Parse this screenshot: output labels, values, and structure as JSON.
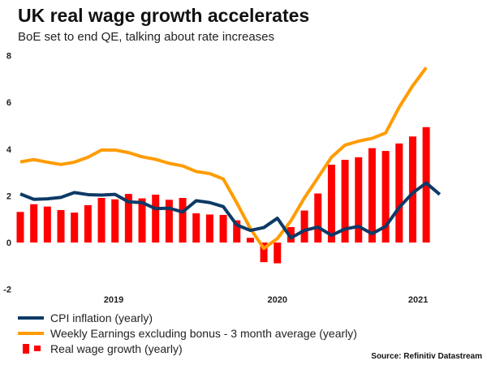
{
  "title": "UK real wage growth accelerates",
  "subtitle": "BoE set to end QE, talking about rate increases",
  "source": "Source: Refinitiv Datastream",
  "colors": {
    "cpi": "#0d3a66",
    "earnings": "#ff9c00",
    "real_wage": "#ff0000"
  },
  "chart_data": {
    "type": "bar+line",
    "ylim": [
      -2,
      8
    ],
    "yticks": [
      -2,
      0,
      2,
      4,
      6,
      8
    ],
    "xticks": [
      {
        "label": "2019",
        "pos": 6.9
      },
      {
        "label": "2020",
        "pos": 19
      },
      {
        "label": "2021",
        "pos": 29.4
      }
    ],
    "grid": false,
    "legend_placement": "bottom-left",
    "series": [
      {
        "name": "CPI inflation (yearly)",
        "kind": "line",
        "color": "#0d3a66",
        "values": [
          2.08,
          1.85,
          1.87,
          1.93,
          2.14,
          2.05,
          2.03,
          2.06,
          1.74,
          1.71,
          1.45,
          1.47,
          1.31,
          1.79,
          1.71,
          1.54,
          0.75,
          0.52,
          0.64,
          1.04,
          0.2,
          0.52,
          0.66,
          0.31,
          0.58,
          0.69,
          0.38,
          0.69,
          1.5,
          2.12,
          2.55,
          2.06
        ]
      },
      {
        "name": "Weekly Earnings excluding bonus - 3 month average (yearly)",
        "kind": "line",
        "color": "#ff9c00",
        "values": [
          3.45,
          3.55,
          3.44,
          3.34,
          3.44,
          3.65,
          3.96,
          3.96,
          3.85,
          3.67,
          3.56,
          3.39,
          3.28,
          3.04,
          2.95,
          2.72,
          1.7,
          0.6,
          -0.25,
          0.17,
          0.93,
          1.91,
          2.78,
          3.65,
          4.17,
          4.34,
          4.46,
          4.69,
          5.79,
          6.71,
          7.49
        ]
      },
      {
        "name": "Real wage growth (yearly)",
        "kind": "bar",
        "color": "#ff0000",
        "values": [
          1.31,
          1.64,
          1.54,
          1.39,
          1.28,
          1.6,
          1.91,
          1.85,
          2.08,
          1.89,
          2.05,
          1.83,
          1.91,
          1.25,
          1.2,
          1.18,
          0.95,
          0.2,
          -0.84,
          -0.89,
          0.66,
          1.37,
          2.1,
          3.33,
          3.54,
          3.65,
          4.04,
          3.92,
          4.24,
          4.54,
          4.94
        ]
      }
    ]
  }
}
